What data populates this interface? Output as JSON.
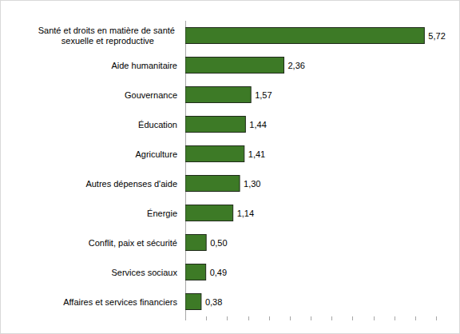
{
  "chart_data": {
    "type": "bar",
    "orientation": "horizontal",
    "categories": [
      "Santé et droits en matière de santé sexuelle et reproductive",
      "Aide humanitaire",
      "Gouvernance",
      "Éducation",
      "Agriculture",
      "Autres dépenses d'aide",
      "Énergie",
      "Conflit, paix et sécurité",
      "Services sociaux",
      "Affaires et services financiers"
    ],
    "values": [
      5.72,
      2.36,
      1.57,
      1.44,
      1.41,
      1.3,
      1.14,
      0.5,
      0.49,
      0.38
    ],
    "value_labels": [
      "5,72",
      "2,36",
      "1,57",
      "1,44",
      "1,41",
      "1,30",
      "1,14",
      "0,50",
      "0,49",
      "0,38"
    ],
    "color": "#3d7a26",
    "xlim": [
      0,
      6
    ],
    "xticks": [
      0,
      0.5,
      1,
      1.5,
      2,
      2.5,
      3,
      3.5,
      4,
      4.5,
      5,
      5.5,
      6
    ],
    "grid": false,
    "data_labels": true,
    "tick_labels": false
  }
}
